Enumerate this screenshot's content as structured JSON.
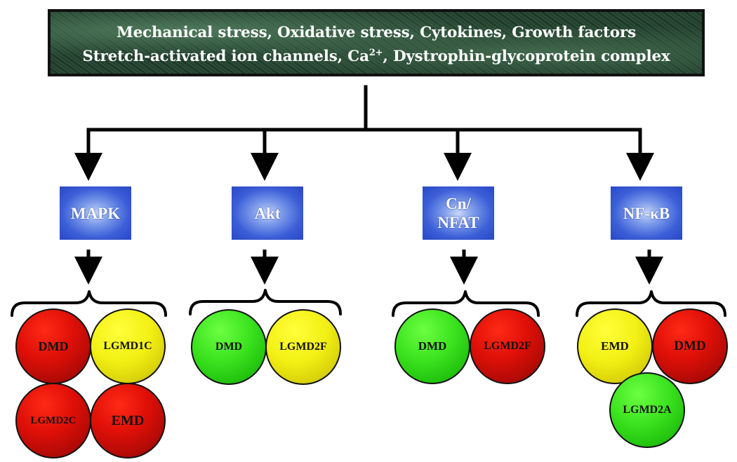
{
  "header": {
    "line1": "Mechanical stress, Oxidative stress, Cytokines, Growth factors",
    "line2_before": "Stretch-activated ion channels, Ca",
    "line2_sup": "2+",
    "line2_after": ", Dystrophin-glycoprotein complex"
  },
  "pathways": [
    {
      "line1": "MAPK",
      "line2": ""
    },
    {
      "line1": "Akt",
      "line2": ""
    },
    {
      "line1": "Cn/",
      "line2": "NFAT"
    },
    {
      "line1": "NF-κB",
      "line2": ""
    }
  ],
  "diseases": [
    {
      "label": "DMD",
      "color": "red"
    },
    {
      "label": "LGMD1C",
      "color": "yellow"
    },
    {
      "label": "LGMD2C",
      "color": "red"
    },
    {
      "label": "EMD",
      "color": "red"
    },
    {
      "label": "DMD",
      "color": "green"
    },
    {
      "label": "LGMD2F",
      "color": "yellow"
    },
    {
      "label": "DMD",
      "color": "green"
    },
    {
      "label": "LGMD2F",
      "color": "red"
    },
    {
      "label": "EMD",
      "color": "yellow"
    },
    {
      "label": "DMD",
      "color": "red"
    },
    {
      "label": "LGMD2A",
      "color": "green"
    }
  ],
  "colors": {
    "red": "#d90d07",
    "yellow": "#eeea10",
    "green": "#35dc1a",
    "box_blue": "#3557d4",
    "header_green": "#234431"
  }
}
